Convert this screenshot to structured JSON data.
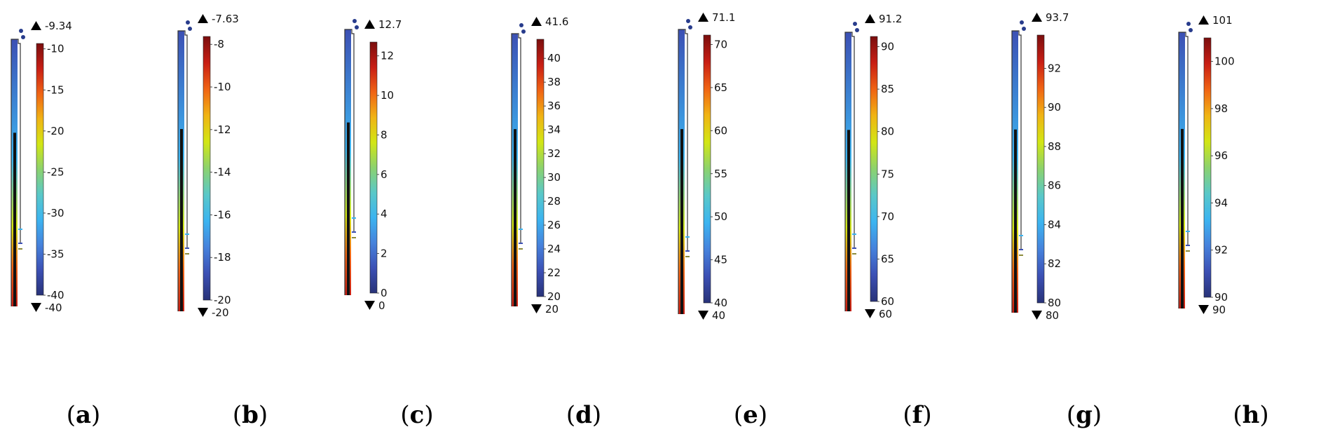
{
  "panels": [
    {
      "caption": "a",
      "max": "-9.34",
      "min": "-40",
      "ticks": [
        "-10",
        "-15",
        "-20",
        "-25",
        "-30",
        "-35",
        "-40"
      ],
      "tickValues": [
        -10,
        -15,
        -20,
        -25,
        -30,
        -35,
        -40
      ],
      "vmin": -40,
      "vmax": -9.34
    },
    {
      "caption": "b",
      "max": "-7.63",
      "min": "-20",
      "ticks": [
        "-8",
        "-10",
        "-12",
        "-14",
        "-16",
        "-18",
        "-20"
      ],
      "tickValues": [
        -8,
        -10,
        -12,
        -14,
        -16,
        -18,
        -20
      ],
      "vmin": -20,
      "vmax": -7.63
    },
    {
      "caption": "c",
      "max": "12.7",
      "min": "0",
      "ticks": [
        "12",
        "10",
        "8",
        "6",
        "4",
        "2",
        "0"
      ],
      "tickValues": [
        12,
        10,
        8,
        6,
        4,
        2,
        0
      ],
      "vmin": 0,
      "vmax": 12.7
    },
    {
      "caption": "d",
      "max": "41.6",
      "min": "20",
      "ticks": [
        "40",
        "38",
        "36",
        "34",
        "32",
        "30",
        "28",
        "26",
        "24",
        "22",
        "20"
      ],
      "tickValues": [
        40,
        38,
        36,
        34,
        32,
        30,
        28,
        26,
        24,
        22,
        20
      ],
      "vmin": 20,
      "vmax": 41.6
    },
    {
      "caption": "e",
      "max": "71.1",
      "min": "40",
      "ticks": [
        "70",
        "65",
        "60",
        "55",
        "50",
        "45",
        "40"
      ],
      "tickValues": [
        70,
        65,
        60,
        55,
        50,
        45,
        40
      ],
      "vmin": 40,
      "vmax": 71.1
    },
    {
      "caption": "f",
      "max": "91.2",
      "min": "60",
      "ticks": [
        "90",
        "85",
        "80",
        "75",
        "70",
        "65",
        "60"
      ],
      "tickValues": [
        90,
        85,
        80,
        75,
        70,
        65,
        60
      ],
      "vmin": 60,
      "vmax": 91.2
    },
    {
      "caption": "g",
      "max": "93.7",
      "min": "80",
      "ticks": [
        "92",
        "90",
        "88",
        "86",
        "84",
        "82",
        "80"
      ],
      "tickValues": [
        92,
        90,
        88,
        86,
        84,
        82,
        80
      ],
      "vmin": 80,
      "vmax": 93.7
    },
    {
      "caption": "h",
      "max": "101",
      "min": "90",
      "ticks": [
        "100",
        "98",
        "96",
        "94",
        "92",
        "90"
      ],
      "tickValues": [
        100,
        98,
        96,
        94,
        92,
        90
      ],
      "vmin": 90,
      "vmax": 101
    }
  ],
  "colors": {
    "colormap": [
      "#7a0e0e",
      "#c81e14",
      "#f06414",
      "#f0b414",
      "#d2e614",
      "#8cd26e",
      "#5ac8c8",
      "#3cb4f0",
      "#4682dc",
      "#3c50b4",
      "#283278"
    ],
    "marker": "#000000",
    "dot": "#283c8c"
  },
  "icons": {
    "max_marker": "triangle-up-icon",
    "min_marker": "triangle-down-icon"
  }
}
